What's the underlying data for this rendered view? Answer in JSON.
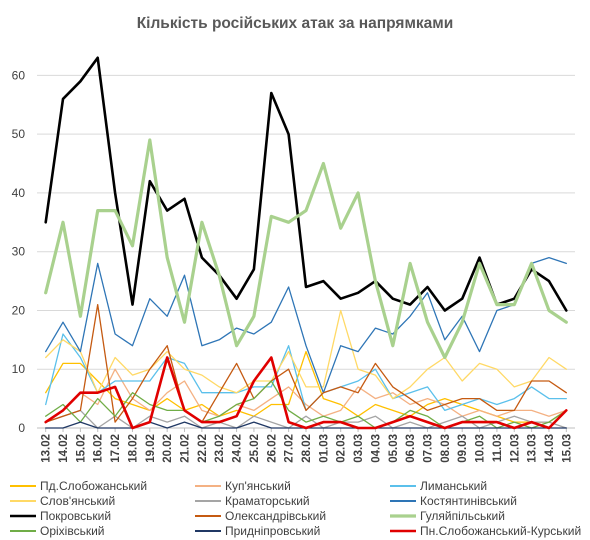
{
  "chart_data": {
    "type": "line",
    "title": "Кількість російських атак за напрямками",
    "xlabel": "",
    "ylabel": "",
    "ylim": [
      0,
      65
    ],
    "yticks": [
      0,
      10,
      20,
      30,
      40,
      50,
      60
    ],
    "grid": "horizontal",
    "legend_position": "bottom",
    "categories": [
      "13.02",
      "14.02",
      "15.02",
      "16.02",
      "17.02",
      "18.02",
      "19.02",
      "20.02",
      "21.02",
      "22.02",
      "23.02",
      "24.02",
      "25.02",
      "26.02",
      "27.02",
      "28.02",
      "01.03",
      "02.03",
      "03.03",
      "04.03",
      "05.03",
      "06.03",
      "07.03",
      "08.03",
      "09.03",
      "10.03",
      "11.03",
      "12.03",
      "13.03",
      "14.03",
      "15.03"
    ],
    "series": [
      {
        "name": "Пд.Слобожанський",
        "color": "#FFC000",
        "width": 1.3,
        "values": [
          6,
          11,
          11,
          8,
          5,
          4,
          3,
          5,
          3,
          4,
          2,
          3,
          2,
          4,
          4,
          13,
          5,
          4,
          2,
          4,
          3,
          2,
          4,
          5,
          4,
          3,
          2,
          1,
          1,
          1,
          3
        ]
      },
      {
        "name": "Куп'янський",
        "color": "#F4B183",
        "width": 1.3,
        "values": [
          1,
          3,
          6,
          4,
          10,
          5,
          3,
          6,
          8,
          3,
          2,
          4,
          3,
          5,
          7,
          4,
          2,
          3,
          7,
          5,
          6,
          4,
          5,
          4,
          2,
          3,
          2,
          3,
          3,
          2,
          3
        ]
      },
      {
        "name": "Лиманський",
        "color": "#5BC0EB",
        "width": 1.3,
        "values": [
          4,
          16,
          12,
          6,
          8,
          8,
          8,
          12,
          11,
          6,
          6,
          6,
          7,
          7,
          14,
          3,
          6,
          7,
          8,
          10,
          5,
          6,
          7,
          3,
          4,
          5,
          4,
          5,
          7,
          5,
          5
        ]
      },
      {
        "name": "Слов'янський",
        "color": "#FFD966",
        "width": 1.3,
        "values": [
          12,
          15,
          13,
          6,
          12,
          9,
          10,
          13,
          10,
          9,
          7,
          6,
          8,
          8,
          13,
          7,
          7,
          20,
          10,
          9,
          5,
          7,
          10,
          12,
          8,
          11,
          10,
          7,
          8,
          12,
          10
        ]
      },
      {
        "name": "Краматорський",
        "color": "#A5A5A5",
        "width": 1.3,
        "values": [
          1,
          2,
          3,
          0,
          2,
          0,
          2,
          1,
          2,
          0,
          1,
          0,
          2,
          1,
          0,
          2,
          0,
          1,
          1,
          2,
          0,
          1,
          0,
          1,
          2,
          0,
          1,
          2,
          1,
          1,
          0
        ]
      },
      {
        "name": "Костянтинівський",
        "color": "#2E75B6",
        "width": 1.3,
        "values": [
          13,
          18,
          13,
          28,
          16,
          14,
          22,
          19,
          26,
          14,
          15,
          17,
          16,
          18,
          24,
          14,
          6,
          14,
          13,
          17,
          16,
          19,
          23,
          15,
          19,
          13,
          20,
          21,
          28,
          29,
          28
        ]
      },
      {
        "name": "Покровський",
        "color": "#000000",
        "width": 2.6,
        "values": [
          35,
          56,
          59,
          63,
          40,
          21,
          42,
          37,
          39,
          29,
          26,
          22,
          27,
          57,
          50,
          24,
          25,
          22,
          23,
          25,
          22,
          21,
          24,
          20,
          22,
          29,
          21,
          22,
          27,
          25,
          20
        ]
      },
      {
        "name": "Олександрівський",
        "color": "#C55A11",
        "width": 1.3,
        "values": [
          1,
          2,
          3,
          21,
          1,
          5,
          10,
          14,
          3,
          1,
          6,
          11,
          5,
          8,
          10,
          3,
          6,
          7,
          6,
          11,
          7,
          5,
          3,
          4,
          5,
          5,
          3,
          3,
          8,
          8,
          6
        ]
      },
      {
        "name": "Гуляйпільський",
        "color": "#A9D18E",
        "width": 3.2,
        "values": [
          23,
          35,
          19,
          37,
          37,
          31,
          49,
          29,
          18,
          35,
          26,
          14,
          19,
          36,
          35,
          37,
          45,
          34,
          40,
          25,
          14,
          28,
          18,
          12,
          18,
          28,
          21,
          21,
          28,
          20,
          18
        ]
      },
      {
        "name": "Оріхівський",
        "color": "#70AD47",
        "width": 1.3,
        "values": [
          2,
          4,
          1,
          5,
          2,
          6,
          4,
          3,
          3,
          1,
          2,
          4,
          5,
          8,
          3,
          1,
          2,
          1,
          2,
          0,
          1,
          3,
          2,
          0,
          1,
          2,
          0,
          1,
          0,
          1,
          3
        ]
      },
      {
        "name": "Придніпровський",
        "color": "#203864",
        "width": 1.3,
        "values": [
          0,
          0,
          1,
          0,
          0,
          0,
          1,
          0,
          1,
          0,
          0,
          0,
          1,
          0,
          0,
          0,
          0,
          0,
          0,
          0,
          0,
          0,
          0,
          0,
          0,
          0,
          0,
          0,
          0,
          0,
          0
        ]
      },
      {
        "name": "Пн.Слобожанський-Курський",
        "color": "#E00000",
        "width": 2.6,
        "values": [
          1,
          3,
          6,
          6,
          7,
          0,
          1,
          12,
          3,
          1,
          1,
          2,
          8,
          12,
          1,
          0,
          1,
          1,
          0,
          0,
          1,
          2,
          1,
          0,
          1,
          1,
          1,
          0,
          1,
          0,
          3
        ]
      }
    ]
  }
}
